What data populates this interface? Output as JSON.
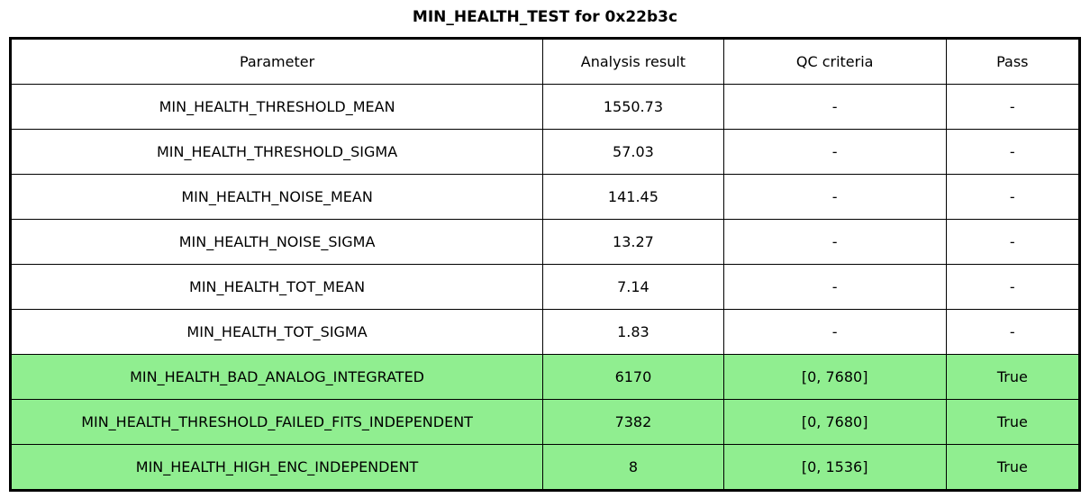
{
  "chart_data": {
    "type": "table",
    "title": "MIN_HEALTH_TEST for 0x22b3c",
    "columns": [
      "Parameter",
      "Analysis result",
      "QC criteria",
      "Pass"
    ],
    "rows": [
      {
        "parameter": "MIN_HEALTH_THRESHOLD_MEAN",
        "analysis_result": "1550.73",
        "qc_criteria": "-",
        "pass": "-",
        "highlight": false
      },
      {
        "parameter": "MIN_HEALTH_THRESHOLD_SIGMA",
        "analysis_result": "57.03",
        "qc_criteria": "-",
        "pass": "-",
        "highlight": false
      },
      {
        "parameter": "MIN_HEALTH_NOISE_MEAN",
        "analysis_result": "141.45",
        "qc_criteria": "-",
        "pass": "-",
        "highlight": false
      },
      {
        "parameter": "MIN_HEALTH_NOISE_SIGMA",
        "analysis_result": "13.27",
        "qc_criteria": "-",
        "pass": "-",
        "highlight": false
      },
      {
        "parameter": "MIN_HEALTH_TOT_MEAN",
        "analysis_result": "7.14",
        "qc_criteria": "-",
        "pass": "-",
        "highlight": false
      },
      {
        "parameter": "MIN_HEALTH_TOT_SIGMA",
        "analysis_result": "1.83",
        "qc_criteria": "-",
        "pass": "-",
        "highlight": false
      },
      {
        "parameter": "MIN_HEALTH_BAD_ANALOG_INTEGRATED",
        "analysis_result": "6170",
        "qc_criteria": "[0, 7680]",
        "pass": "True",
        "highlight": true
      },
      {
        "parameter": "MIN_HEALTH_THRESHOLD_FAILED_FITS_INDEPENDENT",
        "analysis_result": "7382",
        "qc_criteria": "[0, 7680]",
        "pass": "True",
        "highlight": true
      },
      {
        "parameter": "MIN_HEALTH_HIGH_ENC_INDEPENDENT",
        "analysis_result": "8",
        "qc_criteria": "[0, 1536]",
        "pass": "True",
        "highlight": true
      }
    ],
    "colors": {
      "highlight_row": "#90EE90",
      "border": "#000000",
      "text": "#000000",
      "background": "#ffffff"
    },
    "layout": {
      "grid": true,
      "legend": "none"
    }
  }
}
